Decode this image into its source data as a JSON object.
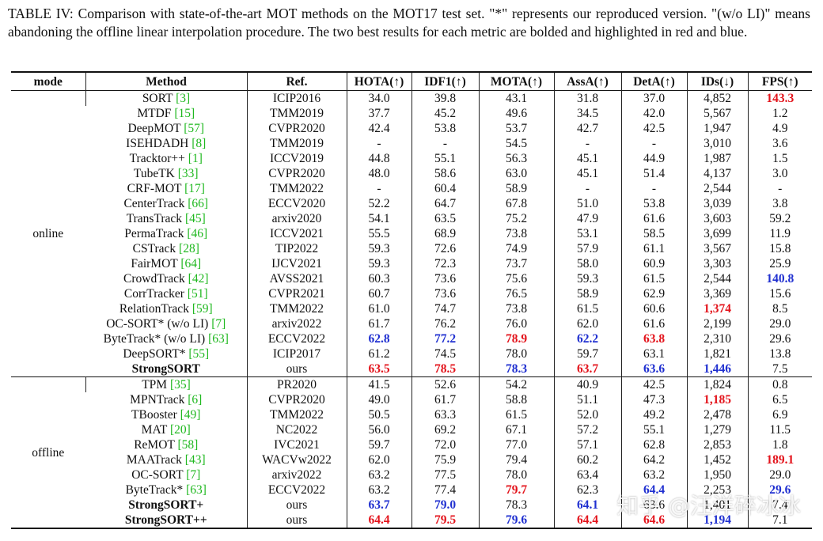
{
  "caption": "TABLE IV: Comparison with state-of-the-art MOT methods on the MOT17 test set. \"*\" represents our reproduced version. \"(w/o LI)\" means abandoning the offline linear interpolation procedure. The two best results for each metric are bolded and highlighted in red and blue.",
  "colors": {
    "red": "#e3131b",
    "blue": "#1f2fd0",
    "cite": "#1fb81f"
  },
  "table": {
    "header": [
      "mode",
      "Method",
      "Ref.",
      "HOTA(↑)",
      "IDF1(↑)",
      "MOTA(↑)",
      "AssA(↑)",
      "DetA(↑)",
      "IDs(↓)",
      "FPS(↑)"
    ],
    "groups": [
      {
        "mode": "online",
        "rows": [
          {
            "method": "SORT",
            "cite": "[3]",
            "ref": "ICIP2016",
            "values": [
              "34.0",
              "39.8",
              "43.1",
              "31.8",
              "37.0",
              "4,852",
              "143.3"
            ],
            "red": [
              6
            ],
            "blue": []
          },
          {
            "method": "MTDF",
            "cite": "[15]",
            "ref": "TMM2019",
            "values": [
              "37.7",
              "45.2",
              "49.6",
              "34.5",
              "42.0",
              "5,567",
              "1.2"
            ],
            "red": [],
            "blue": []
          },
          {
            "method": "DeepMOT",
            "cite": "[57]",
            "ref": "CVPR2020",
            "values": [
              "42.4",
              "53.8",
              "53.7",
              "42.7",
              "42.5",
              "1,947",
              "4.9"
            ],
            "red": [],
            "blue": []
          },
          {
            "method": "ISEHDADH",
            "cite": "[8]",
            "ref": "TMM2019",
            "values": [
              "-",
              "-",
              "54.5",
              "-",
              "-",
              "3,010",
              "3.6"
            ],
            "red": [],
            "blue": []
          },
          {
            "method": "Tracktor++",
            "cite": "[1]",
            "ref": "ICCV2019",
            "values": [
              "44.8",
              "55.1",
              "56.3",
              "45.1",
              "44.9",
              "1,987",
              "1.5"
            ],
            "red": [],
            "blue": []
          },
          {
            "method": "TubeTK",
            "cite": "[33]",
            "ref": "CVPR2020",
            "values": [
              "48.0",
              "58.6",
              "63.0",
              "45.1",
              "51.4",
              "4,137",
              "3.0"
            ],
            "red": [],
            "blue": []
          },
          {
            "method": "CRF-MOT",
            "cite": "[17]",
            "ref": "TMM2022",
            "values": [
              "-",
              "60.4",
              "58.9",
              "-",
              "-",
              "2,544",
              "-"
            ],
            "red": [],
            "blue": []
          },
          {
            "method": "CenterTrack",
            "cite": "[66]",
            "ref": "ECCV2020",
            "values": [
              "52.2",
              "64.7",
              "67.8",
              "51.0",
              "53.8",
              "3,039",
              "3.8"
            ],
            "red": [],
            "blue": []
          },
          {
            "method": "TransTrack",
            "cite": "[45]",
            "ref": "arxiv2020",
            "values": [
              "54.1",
              "63.5",
              "75.2",
              "47.9",
              "61.6",
              "3,603",
              "59.2"
            ],
            "red": [],
            "blue": []
          },
          {
            "method": "PermaTrack",
            "cite": "[46]",
            "ref": "ICCV2021",
            "values": [
              "55.5",
              "68.9",
              "73.8",
              "53.1",
              "58.5",
              "3,699",
              "11.9"
            ],
            "red": [],
            "blue": []
          },
          {
            "method": "CSTrack",
            "cite": "[28]",
            "ref": "TIP2022",
            "values": [
              "59.3",
              "72.6",
              "74.9",
              "57.9",
              "61.1",
              "3,567",
              "15.8"
            ],
            "red": [],
            "blue": []
          },
          {
            "method": "FairMOT",
            "cite": "[64]",
            "ref": "IJCV2021",
            "values": [
              "59.3",
              "72.3",
              "73.7",
              "58.0",
              "60.9",
              "3,303",
              "25.9"
            ],
            "red": [],
            "blue": []
          },
          {
            "method": "CrowdTrack",
            "cite": "[42]",
            "ref": "AVSS2021",
            "values": [
              "60.3",
              "73.6",
              "75.6",
              "59.3",
              "61.5",
              "2,544",
              "140.8"
            ],
            "red": [],
            "blue": [
              6
            ]
          },
          {
            "method": "CorrTracker",
            "cite": "[51]",
            "ref": "CVPR2021",
            "values": [
              "60.7",
              "73.6",
              "76.5",
              "58.9",
              "62.9",
              "3,369",
              "15.6"
            ],
            "red": [],
            "blue": []
          },
          {
            "method": "RelationTrack",
            "cite": "[59]",
            "ref": "TMM2022",
            "values": [
              "61.0",
              "74.7",
              "73.8",
              "61.5",
              "60.6",
              "1,374",
              "8.5"
            ],
            "red": [
              5
            ],
            "blue": []
          },
          {
            "method": "OC-SORT* (w/o LI)",
            "cite": "[7]",
            "ref": "arxiv2022",
            "values": [
              "61.7",
              "76.2",
              "76.0",
              "62.0",
              "61.6",
              "2,199",
              "29.0"
            ],
            "red": [],
            "blue": []
          },
          {
            "method": "ByteTrack* (w/o LI)",
            "cite": "[63]",
            "ref": "ECCV2022",
            "values": [
              "62.8",
              "77.2",
              "78.9",
              "62.2",
              "63.8",
              "2,310",
              "29.6"
            ],
            "red": [
              2,
              4
            ],
            "blue": [
              0,
              1,
              3
            ]
          },
          {
            "method": "DeepSORT*",
            "cite": "[55]",
            "ref": "ICIP2017",
            "values": [
              "61.2",
              "74.5",
              "78.0",
              "59.7",
              "63.1",
              "1,821",
              "13.8"
            ],
            "red": [],
            "blue": []
          },
          {
            "method": "StrongSORT",
            "bold": true,
            "ref": "ours",
            "values": [
              "63.5",
              "78.5",
              "78.3",
              "63.7",
              "63.6",
              "1,446",
              "7.5"
            ],
            "red": [
              0,
              1,
              3
            ],
            "blue": [
              2,
              4,
              5
            ]
          }
        ]
      },
      {
        "mode": "offline",
        "rows": [
          {
            "method": "TPM",
            "cite": "[35]",
            "ref": "PR2020",
            "values": [
              "41.5",
              "52.6",
              "54.2",
              "40.9",
              "42.5",
              "1,824",
              "0.8"
            ],
            "red": [],
            "blue": []
          },
          {
            "method": "MPNTrack",
            "cite": "[6]",
            "ref": "CVPR2020",
            "values": [
              "49.0",
              "61.7",
              "58.8",
              "51.1",
              "47.3",
              "1,185",
              "6.5"
            ],
            "red": [
              5
            ],
            "blue": []
          },
          {
            "method": "TBooster",
            "cite": "[49]",
            "ref": "TMM2022",
            "values": [
              "50.5",
              "63.3",
              "61.5",
              "52.0",
              "49.2",
              "2,478",
              "6.9"
            ],
            "red": [],
            "blue": []
          },
          {
            "method": "MAT",
            "cite": "[20]",
            "ref": "NC2022",
            "values": [
              "56.0",
              "69.2",
              "67.1",
              "57.2",
              "55.1",
              "1,279",
              "11.5"
            ],
            "red": [],
            "blue": []
          },
          {
            "method": "ReMOT",
            "cite": "[58]",
            "ref": "IVC2021",
            "values": [
              "59.7",
              "72.0",
              "77.0",
              "57.1",
              "62.8",
              "2,853",
              "1.8"
            ],
            "red": [],
            "blue": []
          },
          {
            "method": "MAATrack",
            "cite": "[43]",
            "ref": "WACVw2022",
            "values": [
              "62.0",
              "75.9",
              "79.4",
              "60.2",
              "64.2",
              "1,452",
              "189.1"
            ],
            "red": [
              6
            ],
            "blue": []
          },
          {
            "method": "OC-SORT",
            "cite": "[7]",
            "ref": "arxiv2022",
            "values": [
              "63.2",
              "77.5",
              "78.0",
              "63.4",
              "63.2",
              "1,950",
              "29.0"
            ],
            "red": [],
            "blue": []
          },
          {
            "method": "ByteTrack*",
            "cite": "[63]",
            "ref": "ECCV2022",
            "values": [
              "63.2",
              "77.4",
              "79.7",
              "62.3",
              "64.4",
              "2,253",
              "29.6"
            ],
            "red": [
              2
            ],
            "blue": [
              4,
              6
            ]
          },
          {
            "method": "StrongSORT+",
            "bold": true,
            "ref": "ours",
            "values": [
              "63.7",
              "79.0",
              "78.3",
              "64.1",
              "63.6",
              "1,401",
              "7.4"
            ],
            "red": [],
            "blue": [
              0,
              1,
              3
            ]
          },
          {
            "method": "StrongSORT++",
            "bold": true,
            "ref": "ours",
            "values": [
              "64.4",
              "79.5",
              "79.6",
              "64.4",
              "64.6",
              "1,194",
              "7.1"
            ],
            "red": [
              0,
              1,
              3,
              4
            ],
            "blue": [
              2,
              5
            ]
          }
        ]
      }
    ]
  },
  "watermark": "知乎 @汪洋碎冰冰"
}
